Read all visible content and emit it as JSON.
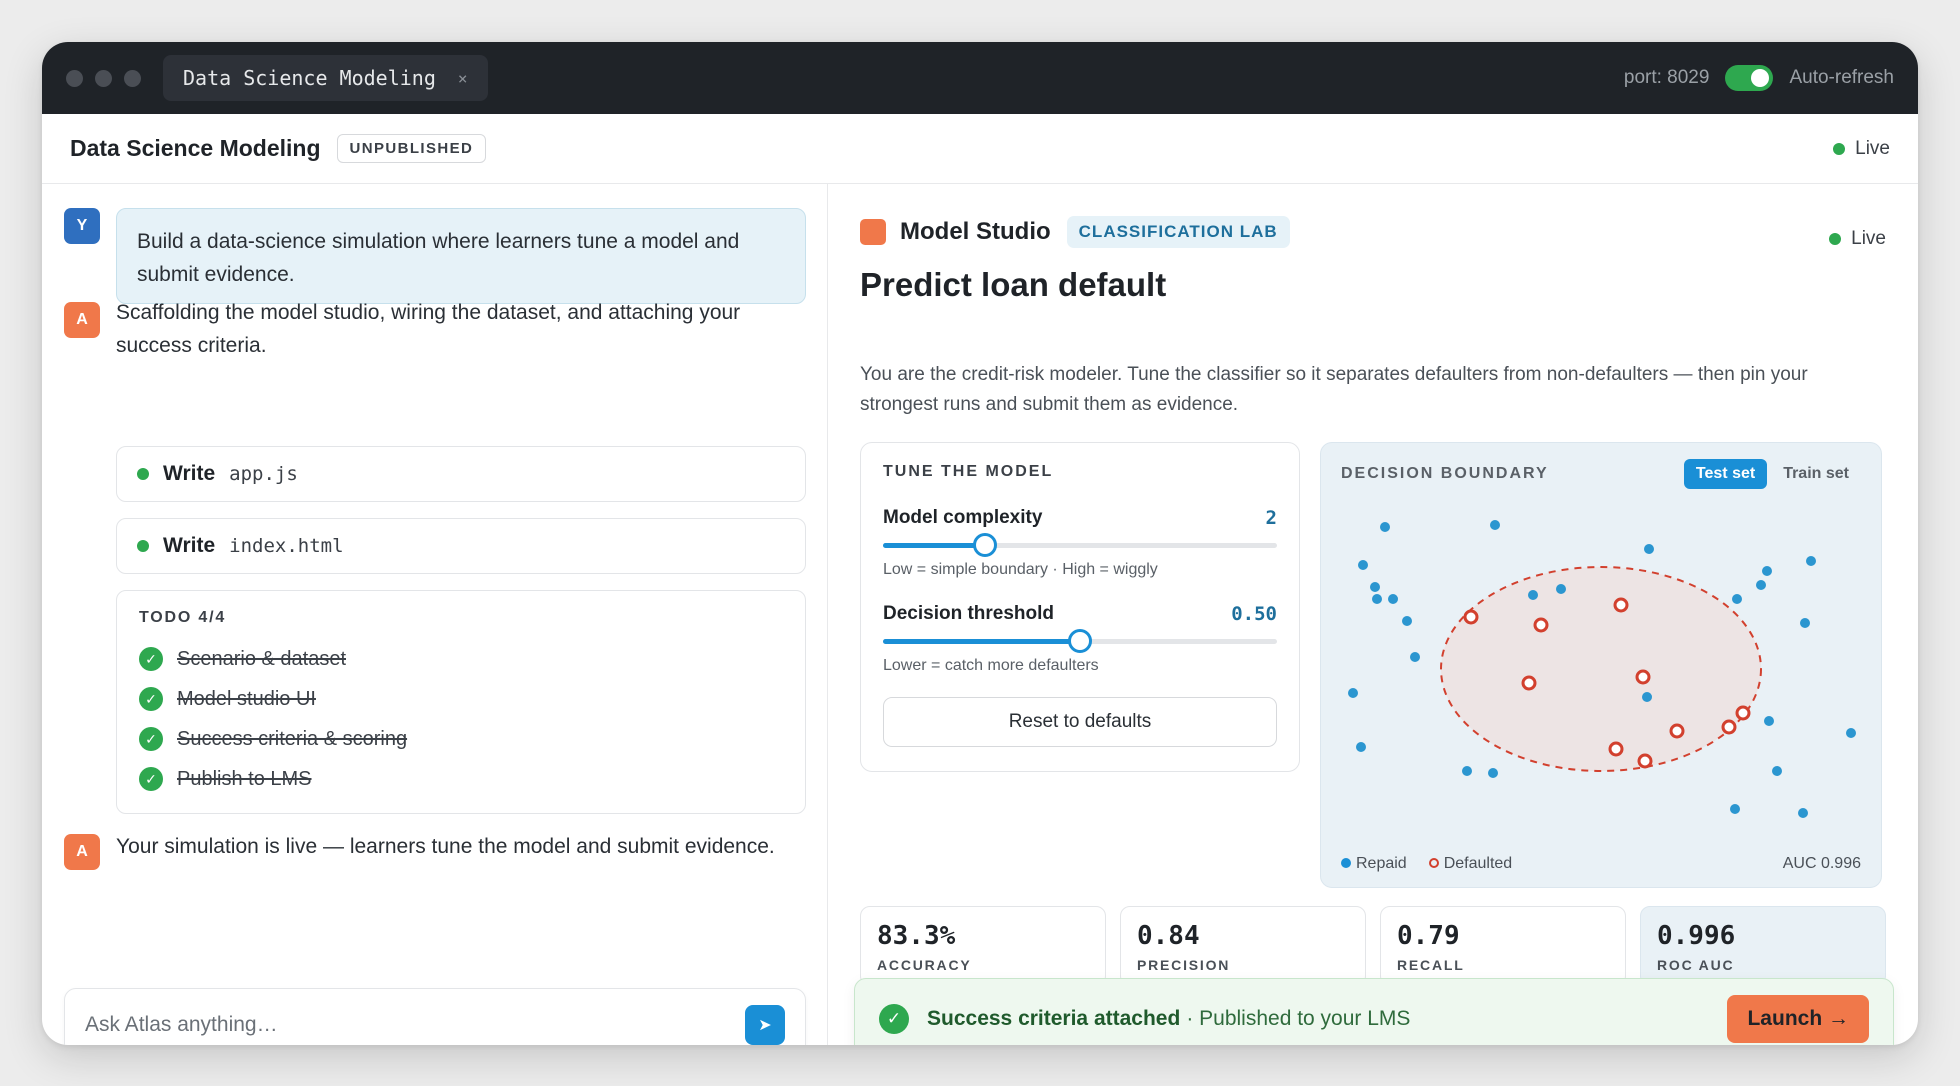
{
  "window": {
    "tab_title": "Data Science Modeling",
    "tab_close": "×",
    "port": "port: 8029",
    "auto_refresh": "Auto-refresh"
  },
  "project": {
    "title": "Data Science Modeling",
    "status": "UNPUBLISHED",
    "live": "Live"
  },
  "chat": {
    "user_avatar": "Y",
    "assistant_avatar": "A",
    "user_message": "Build a data-science simulation where learners tune a model and submit evidence.",
    "assistant_message_1": "Scaffolding the model studio, wiring the dataset, and attaching your success criteria.",
    "writes": [
      {
        "verb": "Write",
        "file": "app.js"
      },
      {
        "verb": "Write",
        "file": "index.html"
      }
    ],
    "todo_header": "TODO 4/4",
    "todos": [
      "Scenario & dataset",
      "Model studio UI",
      "Success criteria & scoring",
      "Publish to LMS"
    ],
    "assistant_message_2": "Your simulation is live — learners tune the model and submit evidence.",
    "input_placeholder": "Ask Atlas anything…",
    "send_icon": "➤"
  },
  "studio": {
    "name": "Model Studio",
    "badge": "CLASSIFICATION LAB",
    "live": "Live",
    "title": "Predict loan default",
    "description": "You are the credit-risk modeler. Tune the classifier so it separates defaulters from non-defaulters — then pin your strongest runs and submit them as evidence.",
    "tune": {
      "header": "TUNE THE MODEL",
      "complexity_label": "Model complexity",
      "complexity_value": "2",
      "complexity_fraction": 0.26,
      "complexity_hint": "Low = simple boundary · High = wiggly",
      "threshold_label": "Decision threshold",
      "threshold_value": "0.50",
      "threshold_fraction": 0.5,
      "threshold_hint": "Lower = catch more defaulters",
      "reset_label": "Reset to defaults"
    },
    "boundary": {
      "header": "DECISION BOUNDARY",
      "test_set": "Test set",
      "train_set": "Train set",
      "legend_repaid": "Repaid",
      "legend_defaulted": "Defaulted",
      "auc": "AUC 0.996",
      "colors": {
        "repaid": "#2b96d0",
        "defaulted": "#d2402e"
      }
    },
    "metrics": [
      {
        "value": "83.3%",
        "label": "ACCURACY"
      },
      {
        "value": "0.84",
        "label": "PRECISION"
      },
      {
        "value": "0.79",
        "label": "RECALL"
      },
      {
        "value": "0.996",
        "label": "ROC AUC"
      }
    ],
    "toast": {
      "bold": "Success criteria attached",
      "rest": "· Published to your LMS",
      "launch": "Launch →"
    }
  }
}
